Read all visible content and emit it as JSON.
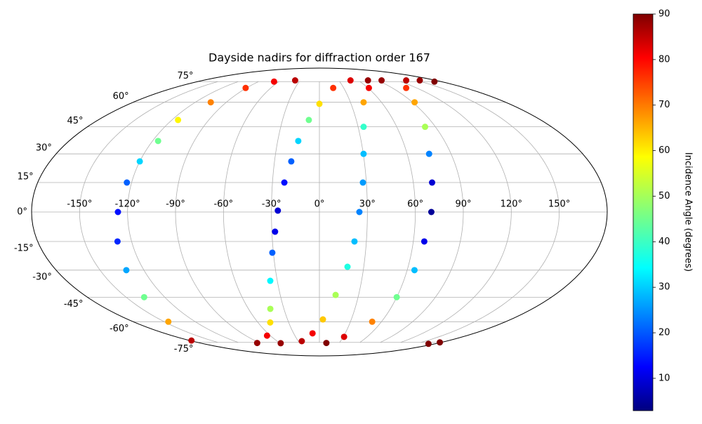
{
  "chart_data": {
    "type": "scatter",
    "projection": "mollweide",
    "title": "Dayside nadirs for diffraction order 167",
    "colorbar_label": "Incidence Angle (degrees)",
    "colormap": "jet",
    "clim": [
      2.9,
      90
    ],
    "cticks": [
      10,
      20,
      30,
      40,
      50,
      60,
      70,
      80,
      90
    ],
    "xlim": [
      -180,
      180
    ],
    "ylim": [
      -90,
      90
    ],
    "xticks": [
      {
        "value": -150,
        "label": "-150°"
      },
      {
        "value": -120,
        "label": "-120°"
      },
      {
        "value": -90,
        "label": "-90°"
      },
      {
        "value": -60,
        "label": "-60°"
      },
      {
        "value": -30,
        "label": "-30°"
      },
      {
        "value": 0,
        "label": "0°"
      },
      {
        "value": 30,
        "label": "30°"
      },
      {
        "value": 60,
        "label": "60°"
      },
      {
        "value": 90,
        "label": "90°"
      },
      {
        "value": 120,
        "label": "120°"
      },
      {
        "value": 150,
        "label": "150°"
      }
    ],
    "yticks": [
      {
        "value": -75,
        "label": "-75°"
      },
      {
        "value": -60,
        "label": "-60°"
      },
      {
        "value": -45,
        "label": "-45°"
      },
      {
        "value": -30,
        "label": "-30°"
      },
      {
        "value": -15,
        "label": "-15°"
      },
      {
        "value": 0,
        "label": "0°"
      },
      {
        "value": 15,
        "label": "15°"
      },
      {
        "value": 30,
        "label": "30°"
      },
      {
        "value": 45,
        "label": "45°"
      },
      {
        "value": 60,
        "label": "60°"
      },
      {
        "value": 75,
        "label": "75°"
      }
    ],
    "grid": true,
    "series": [
      {
        "x": [
          -37.5,
          -67,
          -91,
          -105,
          -115,
          -116,
          -120,
          -123,
          -126,
          -129,
          -132,
          -136,
          -146,
          -178
        ],
        "y": [
          76,
          75,
          70,
          60,
          49,
          37,
          26,
          15,
          0,
          -15,
          -30,
          -45,
          -60,
          -73.5
        ],
        "values": [
          85,
          80,
          75,
          68,
          58,
          45,
          32,
          22,
          15,
          17,
          28,
          45,
          65,
          85
        ]
      },
      {
        "x": [
          -94,
          -64,
          -48,
          -41.5,
          -35,
          -30.7,
          -28,
          -26,
          -22.4,
          -18.8,
          -15.2,
          -8.6,
          0,
          17,
          48,
          75
        ],
        "y": [
          -75.5,
          -69.7,
          -60.5,
          -51.9,
          -35.8,
          -20.8,
          -10,
          0.7,
          15,
          26,
          37,
          49,
          59,
          70,
          76,
          76
        ],
        "values": [
          88,
          80,
          60,
          50,
          35,
          22,
          12,
          10,
          15,
          22,
          32,
          45,
          60,
          75,
          82,
          88
        ]
      },
      {
        "x": [
          -59,
          -25,
          -8,
          3.3,
          12.4,
          19,
          22.4,
          25,
          27.8,
          30.2,
          34.3,
          42.7,
          61,
          96
        ],
        "y": [
          -75.7,
          -74,
          -68,
          -58.5,
          -43.7,
          -28.2,
          -15,
          0,
          15,
          30,
          45,
          60,
          70,
          76
        ],
        "values": [
          88,
          85,
          80,
          62,
          50,
          38,
          30,
          25,
          27,
          30,
          40,
          65,
          80,
          88
        ]
      },
      {
        "x": [
          134,
          155,
          170,
          107,
          92,
          82,
          75,
          72,
          70,
          67,
          65,
          60,
          51,
          31,
          10.5,
          170,
          178
        ],
        "y": [
          76,
          76,
          75,
          70,
          60,
          45,
          30,
          15,
          0,
          -15,
          -30,
          -45,
          -60,
          -70.6,
          -75.5,
          -76.2,
          -75
        ],
        "values": [
          85,
          88,
          90,
          75,
          65,
          50,
          25,
          10,
          5,
          12,
          30,
          45,
          68,
          82,
          90,
          90,
          90
        ]
      }
    ]
  }
}
